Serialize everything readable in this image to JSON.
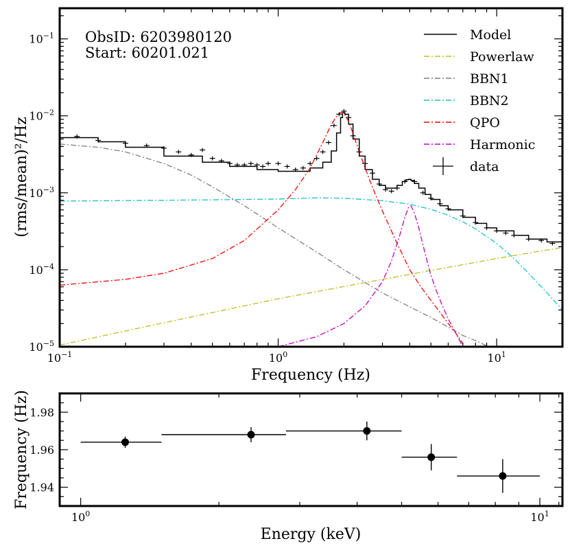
{
  "chart_data": [
    {
      "type": "line",
      "scale": "log-log",
      "xlabel": "Frequency (Hz)",
      "ylabel": "(rms/mean)²/Hz",
      "xlim": [
        0.1,
        20
      ],
      "ylim": [
        1e-05,
        0.25
      ],
      "x_tick_labels": [
        {
          "v": 0.1,
          "t": "10",
          "e": "−1"
        },
        {
          "v": 1,
          "t": "10",
          "e": "0"
        },
        {
          "v": 10,
          "t": "10",
          "e": "1"
        }
      ],
      "y_tick_labels": [
        {
          "v": 1e-05,
          "t": "10",
          "e": "−5"
        },
        {
          "v": 0.0001,
          "t": "10",
          "e": "−4"
        },
        {
          "v": 0.001,
          "t": "10",
          "e": "−3"
        },
        {
          "v": 0.01,
          "t": "10",
          "e": "−2"
        },
        {
          "v": 0.1,
          "t": "10",
          "e": "−1"
        }
      ],
      "annotations": [
        "ObsID: 6203980120",
        "Start: 60201.021"
      ],
      "legend_position": "top-right",
      "series": [
        {
          "name": "Model",
          "color": "#000000",
          "dash": "solid",
          "x": [
            0.1,
            0.15,
            0.2,
            0.3,
            0.45,
            0.6,
            0.8,
            1.0,
            1.2,
            1.4,
            1.6,
            1.75,
            1.85,
            1.93,
            1.97,
            2.02,
            2.1,
            2.2,
            2.35,
            2.5,
            2.7,
            2.9,
            3.1,
            3.3,
            3.5,
            3.7,
            3.85,
            3.95,
            4.05,
            4.2,
            4.4,
            4.7,
            5,
            5.5,
            6,
            7,
            8,
            9,
            10,
            12,
            14,
            17,
            20
          ],
          "y": [
            0.0052,
            0.0046,
            0.0039,
            0.003,
            0.0025,
            0.0022,
            0.002,
            0.0019,
            0.0019,
            0.0021,
            0.0025,
            0.0035,
            0.006,
            0.0095,
            0.011,
            0.0105,
            0.0078,
            0.005,
            0.003,
            0.002,
            0.0015,
            0.00125,
            0.00115,
            0.00115,
            0.00125,
            0.0014,
            0.00148,
            0.0015,
            0.00145,
            0.00132,
            0.00115,
            0.00095,
            0.00082,
            0.00068,
            0.0006,
            0.00048,
            0.0004,
            0.00035,
            0.00032,
            0.00028,
            0.00025,
            0.00023,
            0.00022
          ]
        },
        {
          "name": "Powerlaw",
          "color": "#bcbd22",
          "dash": "8,3,2,3",
          "x": [
            0.1,
            0.3,
            1,
            3,
            10,
            20
          ],
          "y": [
            1.05e-05,
            2.05e-05,
            4.2e-05,
            7.5e-05,
            0.00014,
            0.000195
          ]
        },
        {
          "name": "BBN1",
          "color": "#7f7f7f",
          "dash": "8,3,2,3",
          "x": [
            0.1,
            0.15,
            0.2,
            0.3,
            0.4,
            0.5,
            0.7,
            1.0,
            1.5,
            2,
            3,
            4,
            5,
            6,
            7,
            8,
            9,
            10
          ],
          "y": [
            0.0043,
            0.0039,
            0.0034,
            0.0024,
            0.0017,
            0.0012,
            0.00068,
            0.00035,
            0.00017,
            0.0001,
            5e-05,
            3.3e-05,
            2.4e-05,
            1.8e-05,
            1.4e-05,
            1.2e-05,
            1.03e-05,
            9e-06
          ]
        },
        {
          "name": "BBN2",
          "color": "#17becf",
          "dash": "8,3,2,3",
          "x": [
            0.1,
            0.3,
            0.5,
            1.0,
            1.5,
            2,
            3,
            4,
            5,
            6,
            7,
            8,
            10,
            12,
            14,
            17,
            20
          ],
          "y": [
            0.00078,
            0.0008,
            0.00081,
            0.00083,
            0.00086,
            0.00085,
            0.00079,
            0.00071,
            0.00061,
            0.00051,
            0.00042,
            0.00034,
            0.00022,
            0.00014,
            9e-05,
            5e-05,
            3e-05
          ]
        },
        {
          "name": "QPO",
          "color": "#ff0000",
          "dash": "8,3,2,3",
          "x": [
            0.1,
            0.2,
            0.3,
            0.5,
            0.7,
            1.0,
            1.2,
            1.4,
            1.6,
            1.75,
            1.85,
            1.93,
            1.97,
            2.02,
            2.1,
            2.2,
            2.35,
            2.5,
            2.7,
            3.0,
            3.5,
            4,
            4.5,
            5,
            5.5,
            6,
            6.5,
            7
          ],
          "y": [
            6.3e-05,
            7.5e-05,
            9e-05,
            0.00014,
            0.00024,
            0.0006,
            0.0011,
            0.0021,
            0.0045,
            0.0077,
            0.0098,
            0.011,
            0.011,
            0.0103,
            0.0085,
            0.0059,
            0.0034,
            0.0021,
            0.00118,
            0.00058,
            0.00022,
            0.0001,
            6e-05,
            4e-05,
            2.8e-05,
            2e-05,
            1.5e-05,
            1.1e-05
          ]
        },
        {
          "name": "Harmonic",
          "color": "#bf00bf",
          "dash": "8,3,2,3",
          "x": [
            1.0,
            1.5,
            2.0,
            2.5,
            3.0,
            3.3,
            3.6,
            3.8,
            3.95,
            4.05,
            4.2,
            4.4,
            4.6,
            4.8,
            5.0,
            5.3,
            5.6,
            6.0,
            6.5,
            7.0
          ],
          "y": [
            1e-05,
            1.35e-05,
            2e-05,
            3.4e-05,
            7e-05,
            0.00013,
            0.00028,
            0.00048,
            0.00065,
            0.00068,
            0.00055,
            0.00035,
            0.00021,
            0.00013,
            8.5e-05,
            5.3e-05,
            3.6e-05,
            2.3e-05,
            1.5e-05,
            1e-05
          ]
        },
        {
          "name": "data",
          "color": "#000000",
          "marker": "errorbar",
          "x": [
            0.12,
            0.15,
            0.2,
            0.25,
            0.3,
            0.35,
            0.4,
            0.45,
            0.5,
            0.55,
            0.6,
            0.65,
            0.7,
            0.75,
            0.8,
            0.85,
            0.9,
            1.0,
            1.1,
            1.2,
            1.3,
            1.4,
            1.5,
            1.6,
            1.7,
            1.8,
            1.9,
            2.0,
            2.1,
            2.2,
            2.35,
            2.5,
            2.7,
            2.9,
            3.1,
            3.3,
            3.5,
            3.8,
            4.2,
            4.6,
            5.0,
            5.5,
            6,
            7,
            8,
            9,
            10,
            11,
            12,
            14,
            16,
            18
          ],
          "y": [
            0.0054,
            0.0048,
            0.0044,
            0.0041,
            0.0038,
            0.0034,
            0.0031,
            0.0036,
            0.0028,
            0.0026,
            0.0024,
            0.0023,
            0.0023,
            0.0024,
            0.0023,
            0.0022,
            0.0024,
            0.0024,
            0.0022,
            0.002,
            0.0021,
            0.0024,
            0.0028,
            0.0034,
            0.0045,
            0.0075,
            0.0105,
            0.0115,
            0.0095,
            0.0055,
            0.0034,
            0.0024,
            0.0018,
            0.0013,
            0.0011,
            0.00105,
            0.00115,
            0.0014,
            0.0014,
            0.001,
            0.00085,
            0.00072,
            0.00062,
            0.0005,
            0.00041,
            0.00035,
            0.00032,
            0.0003,
            0.00028,
            0.00025,
            0.00024,
            0.00022
          ]
        }
      ]
    },
    {
      "type": "scatter",
      "scale": "logx",
      "xlabel": "Energy (keV)",
      "ylabel": "Frequency (Hz)",
      "xlim": [
        0.9,
        11.2
      ],
      "ylim": [
        1.93,
        1.99
      ],
      "x_tick_labels": [
        {
          "v": 1,
          "t": "10",
          "e": "0"
        },
        {
          "v": 10,
          "t": "10",
          "e": "1"
        }
      ],
      "y_tick_labels": [
        {
          "v": 1.94,
          "t": "1.94"
        },
        {
          "v": 1.96,
          "t": "1.96"
        },
        {
          "v": 1.98,
          "t": "1.98"
        }
      ],
      "points": [
        {
          "x": 1.25,
          "xlo": 1.0,
          "xhi": 1.5,
          "y": 1.964,
          "yerr": 0.003
        },
        {
          "x": 2.35,
          "xlo": 1.5,
          "xhi": 2.8,
          "y": 1.968,
          "yerr": 0.004
        },
        {
          "x": 4.2,
          "xlo": 2.8,
          "xhi": 5.0,
          "y": 1.97,
          "yerr": 0.005
        },
        {
          "x": 5.8,
          "xlo": 5.0,
          "xhi": 6.6,
          "y": 1.956,
          "yerr": 0.007
        },
        {
          "x": 8.3,
          "xlo": 6.6,
          "xhi": 10.0,
          "y": 1.946,
          "yerr": 0.009
        }
      ]
    }
  ]
}
